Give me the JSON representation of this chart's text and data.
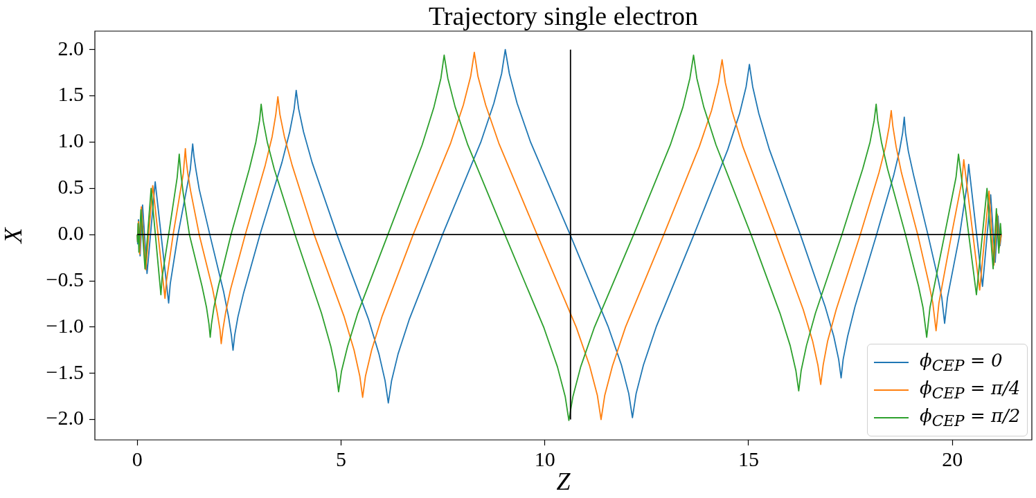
{
  "chart_data": {
    "type": "line",
    "title": "Trajectory single electron",
    "xlabel": "Z",
    "ylabel": "X",
    "xlim": [
      -1.04,
      21.95
    ],
    "xticks": [
      0,
      5,
      10,
      15,
      20
    ],
    "ylim": [
      -2.22,
      2.2
    ],
    "yticks": [
      {
        "value": -2,
        "label": "−2.0"
      },
      {
        "value": -1.5,
        "label": "−1.5"
      },
      {
        "value": -1,
        "label": "−1.0"
      },
      {
        "value": -0.5,
        "label": "−0.5"
      },
      {
        "value": 0,
        "label": "0.0"
      },
      {
        "value": 0.5,
        "label": "0.5"
      },
      {
        "value": 1,
        "label": "1.0"
      },
      {
        "value": 1.5,
        "label": "1.5"
      },
      {
        "value": 2,
        "label": "2.0"
      }
    ],
    "legend": "bottom right",
    "marker": "none",
    "series": [
      {
        "name": "ϕ$_{CEP}$ = 0",
        "color": "#1f77b4",
        "x": [
          0,
          0.01,
          0.03,
          0.07,
          0.13,
          0.24,
          0.44,
          0.77,
          0.81,
          1.0,
          1.3,
          1.36,
          1.39,
          1.44,
          1.52,
          1.78,
          2.12,
          2.24,
          2.31,
          2.35,
          2.39,
          2.47,
          2.61,
          3.01,
          3.55,
          3.74,
          3.85,
          3.9,
          3.96,
          4.08,
          4.29,
          4.9,
          5.67,
          5.93,
          6.08,
          6.16,
          6.24,
          6.4,
          6.68,
          7.49,
          8.43,
          8.75,
          8.94,
          9.03,
          9.13,
          9.32,
          9.65,
          10.62,
          11.55,
          11.88,
          12.06,
          12.15,
          12.24,
          12.42,
          12.74,
          13.66,
          14.49,
          14.78,
          14.94,
          15.02,
          15.1,
          15.25,
          15.51,
          16.27,
          16.88,
          17.09,
          17.21,
          17.27,
          17.32,
          17.43,
          17.61,
          18.14,
          18.56,
          18.7,
          18.78,
          18.82,
          18.85,
          18.92,
          19.05,
          19.4,
          19.65,
          19.74,
          19.81,
          19.88,
          20.18,
          20.36,
          20.4,
          20.74,
          20.94,
          21.05,
          21.12,
          21.17,
          21.2
        ],
        "values": [
          0,
          -0.1,
          0.16,
          -0.23,
          0.32,
          -0.42,
          0.57,
          -0.74,
          -0.53,
          0,
          0.7,
          0.98,
          0.85,
          0.7,
          0.49,
          0,
          -0.62,
          -0.89,
          -1.09,
          -1.25,
          -1.09,
          -0.89,
          -0.63,
          0,
          0.78,
          1.11,
          1.36,
          1.56,
          1.36,
          1.11,
          0.78,
          0,
          -0.91,
          -1.29,
          -1.58,
          -1.82,
          -1.58,
          -1.29,
          -0.91,
          0,
          1.0,
          1.42,
          1.74,
          2.0,
          1.74,
          1.42,
          1.0,
          0,
          -0.99,
          -1.41,
          -1.72,
          -1.98,
          -1.72,
          -1.41,
          -0.99,
          0,
          0.92,
          1.31,
          1.6,
          1.84,
          1.6,
          1.31,
          0.92,
          0,
          -0.78,
          -1.1,
          -1.35,
          -1.55,
          -1.35,
          -1.1,
          -0.78,
          0,
          0.64,
          0.9,
          1.1,
          1.27,
          1.1,
          0.9,
          0.64,
          0,
          -0.48,
          -0.68,
          -0.96,
          -0.68,
          0,
          0.54,
          0.76,
          -0.56,
          0.43,
          -0.3,
          0.2,
          -0.12,
          0
        ]
      },
      {
        "name": "ϕ$_{CEP}$ = π/4",
        "color": "#ff7f0e",
        "x": [
          0,
          0.01,
          0.03,
          0.06,
          0.1,
          0.21,
          0.38,
          0.68,
          0.72,
          0.88,
          1.13,
          1.18,
          1.2,
          1.24,
          1.31,
          1.52,
          1.85,
          1.96,
          2.03,
          2.06,
          2.1,
          2.17,
          2.29,
          2.65,
          3.14,
          3.31,
          3.4,
          3.45,
          3.5,
          3.61,
          3.8,
          4.34,
          5.07,
          5.32,
          5.46,
          5.53,
          5.6,
          5.75,
          6.01,
          6.77,
          7.69,
          8.0,
          8.18,
          8.27,
          8.36,
          8.55,
          8.87,
          9.81,
          10.77,
          11.1,
          11.29,
          11.38,
          11.47,
          11.66,
          11.98,
          12.92,
          13.79,
          14.09,
          14.26,
          14.35,
          14.43,
          14.59,
          14.86,
          15.67,
          16.34,
          16.57,
          16.7,
          16.77,
          16.83,
          16.94,
          17.15,
          17.74,
          18.2,
          18.36,
          18.45,
          18.5,
          18.54,
          18.62,
          18.75,
          19.15,
          19.42,
          19.52,
          19.6,
          19.67,
          19.98,
          20.23,
          20.28,
          20.67,
          20.9,
          21.02,
          21.1,
          21.15,
          21.2
        ],
        "values": [
          0,
          -0.08,
          0.14,
          -0.21,
          0.3,
          -0.38,
          0.53,
          -0.69,
          -0.49,
          0,
          0.66,
          0.93,
          0.81,
          0.66,
          0.47,
          0,
          -0.59,
          -0.84,
          -1.03,
          -1.18,
          -1.03,
          -0.84,
          -0.59,
          0,
          0.75,
          1.06,
          1.3,
          1.49,
          1.3,
          1.06,
          0.75,
          0,
          -0.88,
          -1.25,
          -1.53,
          -1.76,
          -1.53,
          -1.25,
          -0.88,
          0,
          0.99,
          1.4,
          1.71,
          1.97,
          1.71,
          1.4,
          0.99,
          0,
          -1.0,
          -1.42,
          -1.74,
          -2.0,
          -1.74,
          -1.42,
          -1.0,
          0,
          0.95,
          1.34,
          1.64,
          1.89,
          1.64,
          1.34,
          0.95,
          0,
          -0.81,
          -1.15,
          -1.41,
          -1.62,
          -1.41,
          -1.15,
          -0.81,
          0,
          0.67,
          0.95,
          1.17,
          1.34,
          1.17,
          0.95,
          0.67,
          0,
          -0.52,
          -0.74,
          -1.04,
          -0.74,
          0,
          0.57,
          0.81,
          -0.6,
          0.47,
          -0.33,
          0.22,
          -0.14,
          0
        ]
      },
      {
        "name": "ϕ$_{CEP}$ = π/2",
        "color": "#2ca02c",
        "x": [
          0,
          0.01,
          0.02,
          0.04,
          0.09,
          0.19,
          0.34,
          0.58,
          0.61,
          0.77,
          0.98,
          1.03,
          1.05,
          1.08,
          1.13,
          1.28,
          1.59,
          1.7,
          1.76,
          1.79,
          1.82,
          1.88,
          1.99,
          2.3,
          2.75,
          2.91,
          3.0,
          3.04,
          3.09,
          3.19,
          3.36,
          3.87,
          4.52,
          4.75,
          4.88,
          4.94,
          5.01,
          5.16,
          5.41,
          6.15,
          6.99,
          7.28,
          7.45,
          7.53,
          7.62,
          7.8,
          8.11,
          9.02,
          9.98,
          10.31,
          10.5,
          10.59,
          10.69,
          10.88,
          11.21,
          12.18,
          13.08,
          13.39,
          13.56,
          13.65,
          13.73,
          13.9,
          14.2,
          15.06,
          15.77,
          16.02,
          16.16,
          16.23,
          16.29,
          16.42,
          16.64,
          17.29,
          17.8,
          17.98,
          18.08,
          18.13,
          18.17,
          18.26,
          18.41,
          18.85,
          19.17,
          19.28,
          19.37,
          19.45,
          19.81,
          20.09,
          20.15,
          20.59,
          20.85,
          21.0,
          21.08,
          21.14,
          21.18,
          21.2
        ],
        "values": [
          0,
          -0.08,
          0.12,
          -0.19,
          0.27,
          -0.37,
          0.5,
          -0.65,
          -0.46,
          0,
          0.62,
          0.87,
          0.76,
          0.62,
          0.44,
          0,
          -0.56,
          -0.79,
          -0.97,
          -1.11,
          -0.97,
          -0.79,
          -0.56,
          0,
          0.71,
          1.0,
          1.23,
          1.41,
          1.23,
          1.0,
          0.71,
          0,
          -0.85,
          -1.21,
          -1.48,
          -1.7,
          -1.48,
          -1.21,
          -0.85,
          0,
          0.97,
          1.38,
          1.69,
          1.94,
          1.69,
          1.38,
          0.97,
          0,
          -1.01,
          -1.43,
          -1.75,
          -2.01,
          -1.75,
          -1.43,
          -1.01,
          0,
          0.97,
          1.38,
          1.69,
          1.94,
          1.69,
          1.38,
          0.97,
          0,
          -0.85,
          -1.2,
          -1.47,
          -1.69,
          -1.47,
          -1.2,
          -0.85,
          0,
          0.71,
          1.0,
          1.23,
          1.41,
          1.23,
          1.0,
          0.71,
          0,
          -0.56,
          -0.79,
          -1.11,
          -0.79,
          0,
          0.62,
          0.87,
          -0.65,
          0.5,
          -0.37,
          0.28,
          -0.2,
          0.12,
          0
        ]
      },
      {
        "type": "line",
        "color": "#000000",
        "x": [
          0,
          21.2
        ],
        "values": [
          0,
          0
        ]
      },
      {
        "type": "line",
        "color": "#000000",
        "x": [
          10.63,
          10.63
        ],
        "values": [
          -2,
          2
        ]
      }
    ]
  }
}
